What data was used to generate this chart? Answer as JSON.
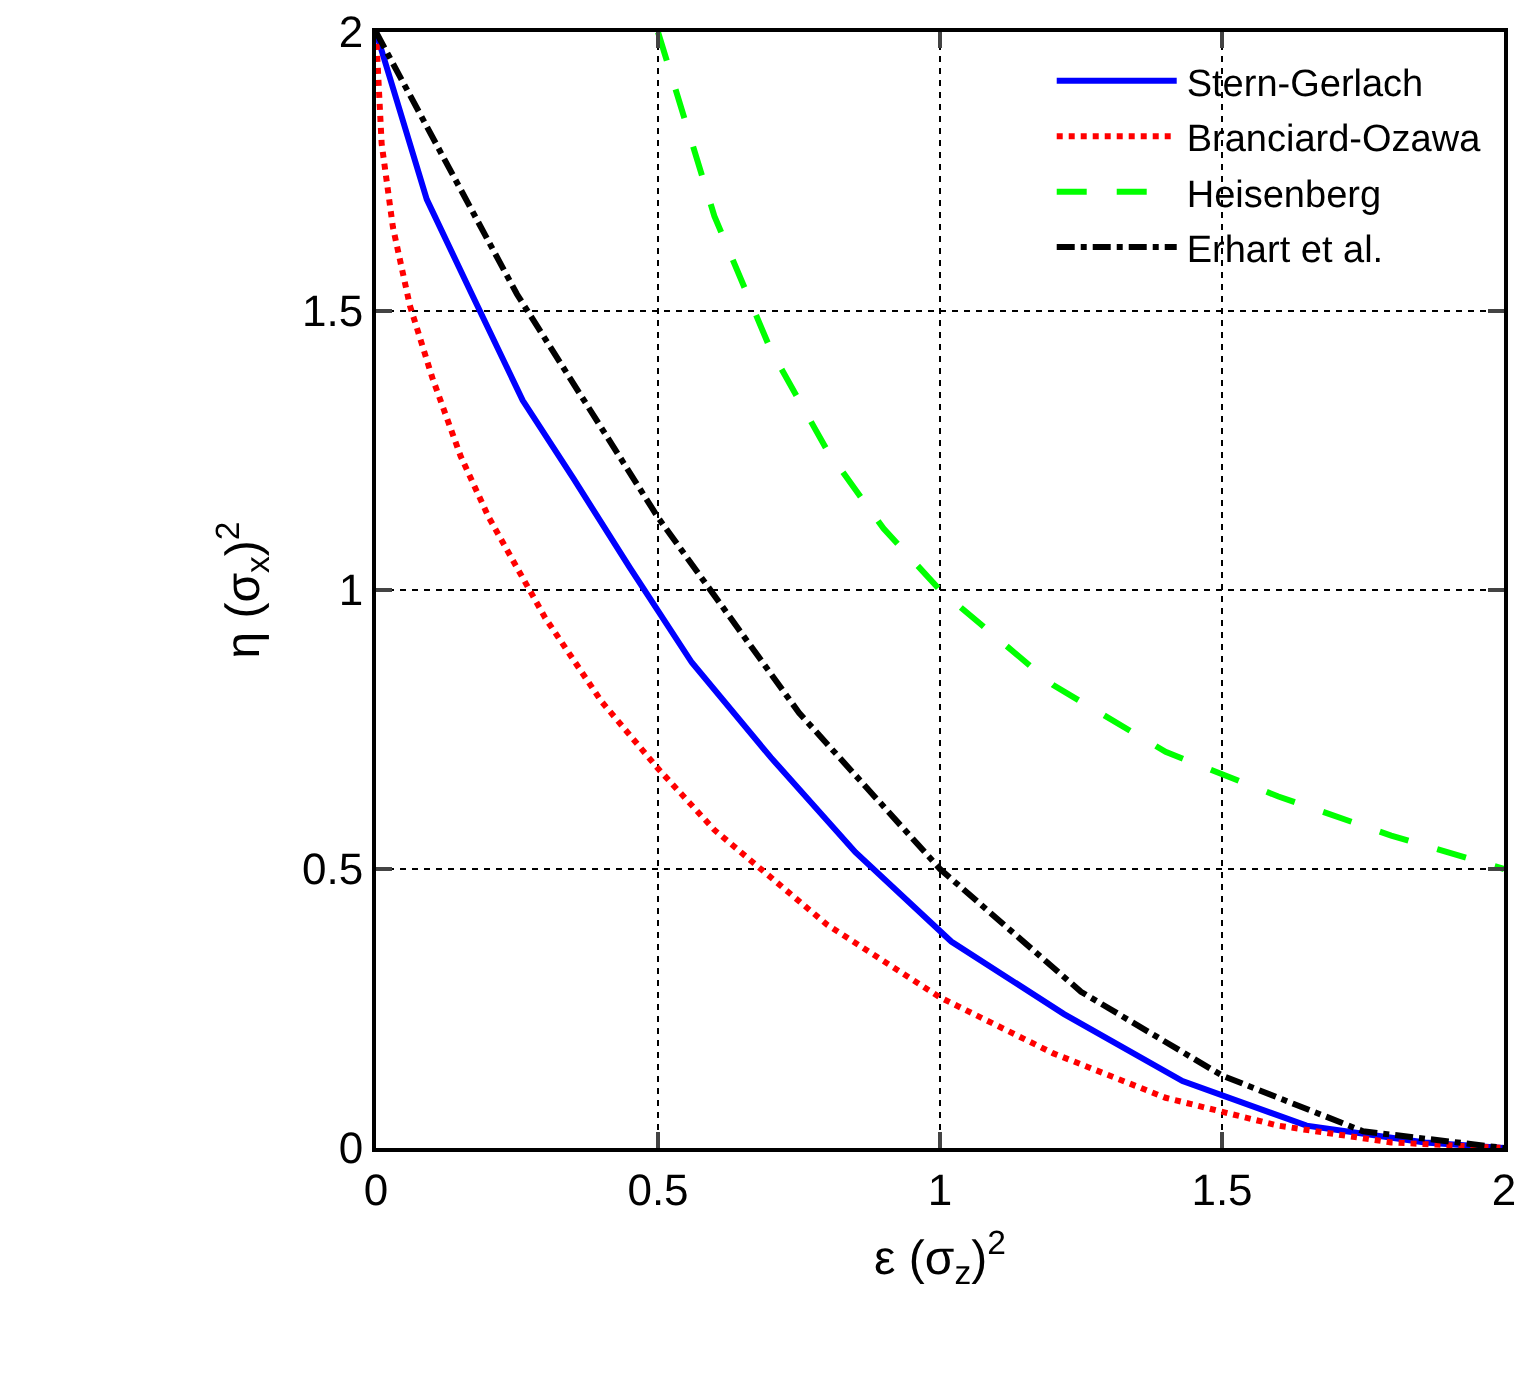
{
  "chart_data": {
    "type": "line",
    "xlabel": "ε (σ$_{z}$)$^{2}$",
    "ylabel": "η (σ$_{x}$)$^{2}$",
    "xlim": [
      0,
      2
    ],
    "ylim": [
      0,
      2
    ],
    "xticks": [
      0,
      0.5,
      1,
      1.5,
      2
    ],
    "yticks": [
      0,
      0.5,
      1,
      1.5,
      2
    ],
    "grid": true,
    "legend": "top right",
    "marker": "none",
    "series": [
      {
        "name": "Stern-Gerlach",
        "color": "#0000ff",
        "line_style": "solid",
        "x": [
          0,
          0.09,
          0.17,
          0.26,
          0.35,
          0.45,
          0.56,
          0.7,
          0.85,
          1.02,
          1.22,
          1.43,
          1.65,
          1.86,
          2
        ],
        "values": [
          2,
          1.7,
          1.53,
          1.34,
          1.2,
          1.04,
          0.87,
          0.7,
          0.53,
          0.37,
          0.24,
          0.12,
          0.04,
          0.01,
          0
        ]
      },
      {
        "name": "Branciard-Ozawa",
        "color": "#ff0000",
        "line_style": "dotted",
        "x": [
          0,
          0.01,
          0.03,
          0.06,
          0.1,
          0.15,
          0.2,
          0.3,
          0.4,
          0.5,
          0.6,
          0.8,
          1,
          1.2,
          1.4,
          1.6,
          1.8,
          2
        ],
        "values": [
          2,
          1.8,
          1.65,
          1.51,
          1.38,
          1.24,
          1.13,
          0.95,
          0.8,
          0.68,
          0.57,
          0.4,
          0.27,
          0.17,
          0.09,
          0.04,
          0.01,
          0
        ]
      },
      {
        "name": "Heisenberg",
        "color": "#00ff00",
        "line_style": "dashed",
        "x": [
          0.5,
          0.6,
          0.7,
          0.8,
          0.9,
          1,
          1.2,
          1.4,
          1.6,
          1.8,
          2
        ],
        "values": [
          2,
          1.67,
          1.43,
          1.25,
          1.11,
          1,
          0.83,
          0.71,
          0.63,
          0.56,
          0.5
        ]
      },
      {
        "name": "Erhart et al.",
        "color": "#000000",
        "line_style": "dashdot",
        "x": [
          0,
          0.25,
          0.5,
          0.75,
          1,
          1.25,
          1.5,
          1.75,
          2
        ],
        "values": [
          2,
          1.53,
          1.13,
          0.78,
          0.5,
          0.28,
          0.13,
          0.03,
          0
        ]
      }
    ]
  }
}
